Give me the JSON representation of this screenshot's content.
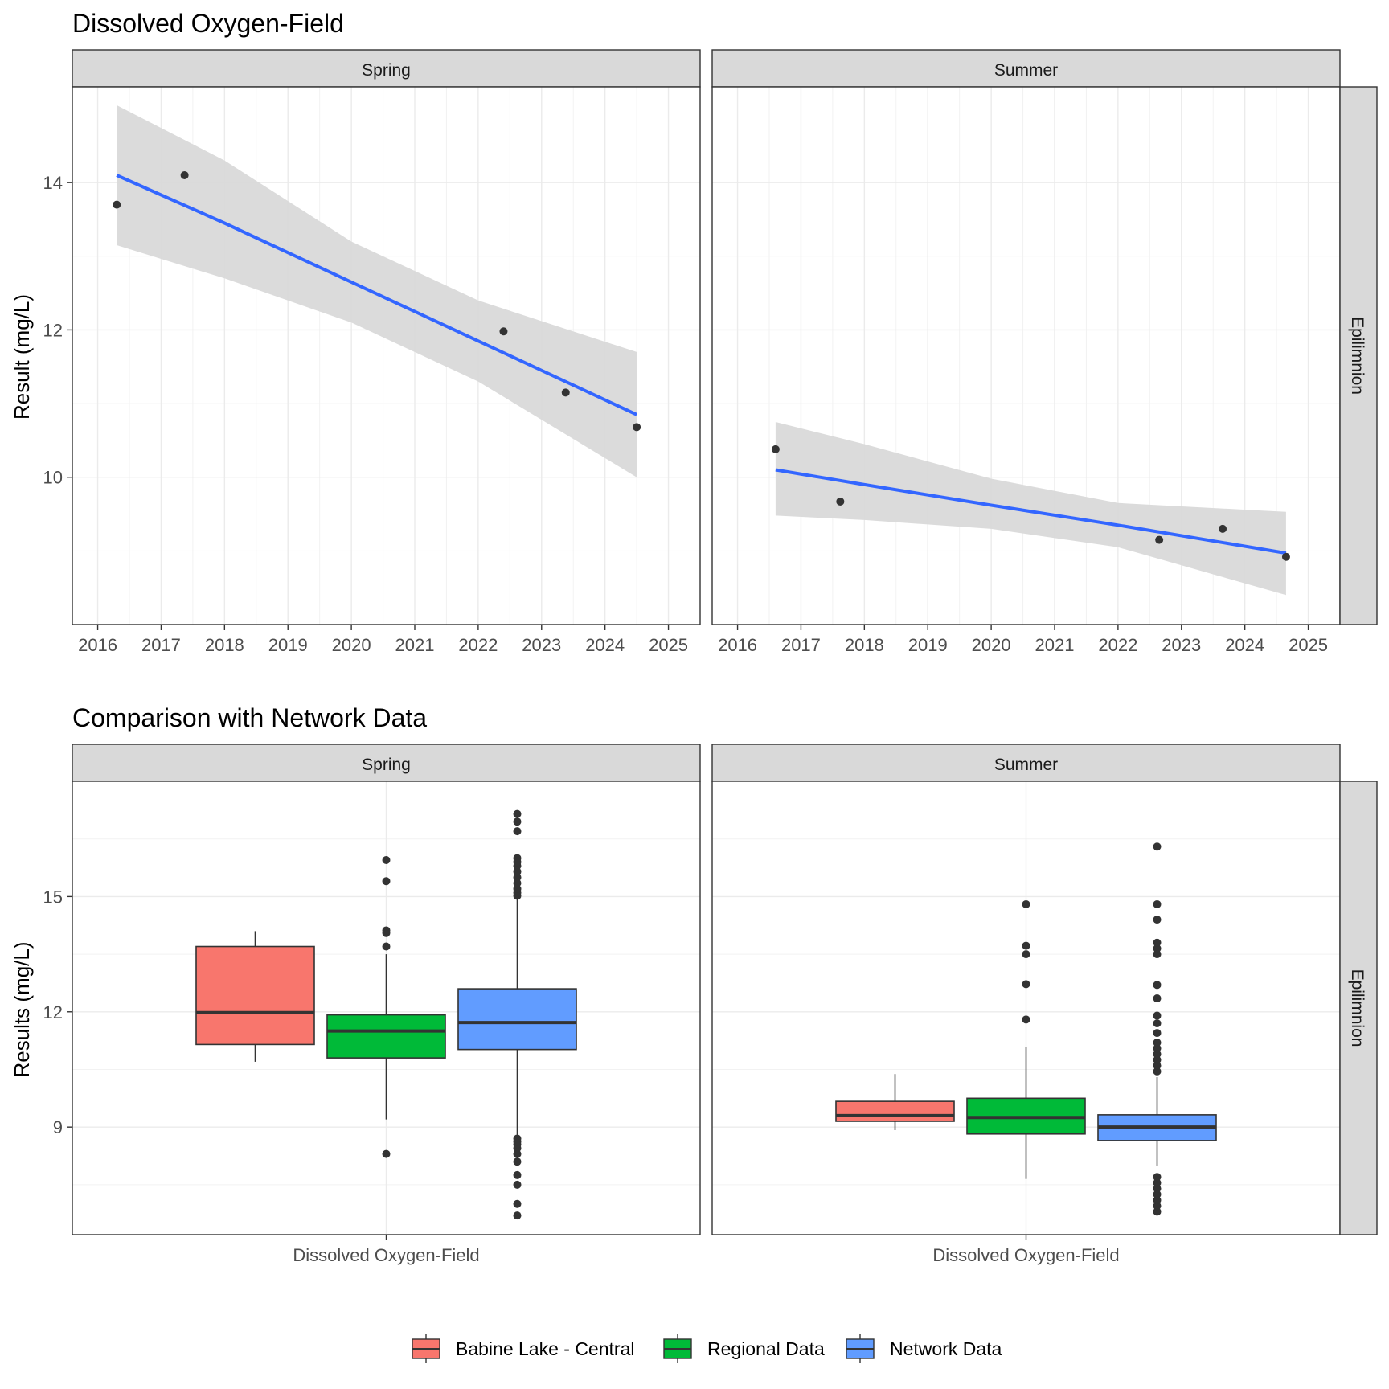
{
  "chart_data": [
    {
      "type": "scatter",
      "title": "Dissolved Oxygen-Field",
      "ylabel": "Result (mg/L)",
      "xlabel": "",
      "x_ticks": [
        "2016",
        "2017",
        "2018",
        "2019",
        "2020",
        "2021",
        "2022",
        "2023",
        "2024",
        "2025"
      ],
      "y_ticks": [
        "10",
        "12",
        "14"
      ],
      "ylim": [
        8.0,
        15.3
      ],
      "xlim": [
        2015.6,
        2025.5
      ],
      "row_label": "Epilimnion",
      "grid": true,
      "trend_line_color": "#3366ff",
      "confidence_band_color": "#d9d9d9",
      "point_color": "#333333",
      "panels": [
        {
          "label": "Spring",
          "points": [
            {
              "x": 2016.3,
              "y": 13.7
            },
            {
              "x": 2017.37,
              "y": 14.1
            },
            {
              "x": 2022.4,
              "y": 11.98
            },
            {
              "x": 2023.38,
              "y": 11.15
            },
            {
              "x": 2024.5,
              "y": 10.68
            }
          ],
          "trend": [
            {
              "x": 2016.3,
              "y": 14.1,
              "lo": 13.15,
              "hi": 15.05
            },
            {
              "x": 2018.0,
              "y": 13.45,
              "lo": 12.7,
              "hi": 14.3
            },
            {
              "x": 2020.0,
              "y": 12.65,
              "lo": 12.1,
              "hi": 13.2
            },
            {
              "x": 2022.0,
              "y": 11.85,
              "lo": 11.3,
              "hi": 12.4
            },
            {
              "x": 2024.5,
              "y": 10.85,
              "lo": 10.0,
              "hi": 11.7
            }
          ]
        },
        {
          "label": "Summer",
          "points": [
            {
              "x": 2016.6,
              "y": 10.38
            },
            {
              "x": 2017.62,
              "y": 9.67
            },
            {
              "x": 2022.65,
              "y": 9.15
            },
            {
              "x": 2023.65,
              "y": 9.3
            },
            {
              "x": 2024.65,
              "y": 8.92
            }
          ],
          "trend": [
            {
              "x": 2016.6,
              "y": 10.1,
              "lo": 9.48,
              "hi": 10.75
            },
            {
              "x": 2018.0,
              "y": 9.9,
              "lo": 9.42,
              "hi": 10.45
            },
            {
              "x": 2020.0,
              "y": 9.62,
              "lo": 9.3,
              "hi": 9.98
            },
            {
              "x": 2022.0,
              "y": 9.35,
              "lo": 9.05,
              "hi": 9.65
            },
            {
              "x": 2024.65,
              "y": 8.97,
              "lo": 8.4,
              "hi": 9.53
            }
          ]
        }
      ]
    },
    {
      "type": "box",
      "title": "Comparison with Network Data",
      "ylabel": "Results (mg/L)",
      "xlabel": "",
      "x_tick": "Dissolved Oxygen-Field",
      "y_ticks": [
        "9",
        "12",
        "15"
      ],
      "ylim": [
        6.2,
        18.0
      ],
      "row_label": "Epilimnion",
      "grid": true,
      "legend_position": "bottom",
      "series": [
        {
          "name": "Babine Lake - Central",
          "color": "#f8766d"
        },
        {
          "name": "Regional Data",
          "color": "#00ba38"
        },
        {
          "name": "Network Data",
          "color": "#619cff"
        }
      ],
      "panels": [
        {
          "label": "Spring",
          "boxes": [
            {
              "series": "Babine Lake - Central",
              "min": 10.7,
              "q1": 11.15,
              "median": 11.98,
              "q3": 13.7,
              "max": 14.1,
              "outliers": []
            },
            {
              "series": "Regional Data",
              "min": 9.2,
              "q1": 10.8,
              "median": 11.5,
              "q3": 11.92,
              "max": 13.5,
              "outliers": [
                8.3,
                13.7,
                14.05,
                14.12,
                15.4,
                15.95
              ]
            },
            {
              "series": "Network Data",
              "min": 8.8,
              "q1": 11.02,
              "median": 11.72,
              "q3": 12.6,
              "max": 14.95,
              "outliers": [
                6.7,
                7.0,
                7.5,
                7.75,
                8.1,
                8.3,
                8.45,
                8.55,
                8.62,
                8.7,
                15.02,
                15.1,
                15.2,
                15.35,
                15.5,
                15.65,
                15.8,
                15.9,
                16.0,
                16.7,
                16.95,
                17.15
              ]
            }
          ]
        },
        {
          "label": "Summer",
          "boxes": [
            {
              "series": "Babine Lake - Central",
              "min": 8.92,
              "q1": 9.15,
              "median": 9.3,
              "q3": 9.67,
              "max": 10.38,
              "outliers": []
            },
            {
              "series": "Regional Data",
              "min": 7.65,
              "q1": 8.82,
              "median": 9.25,
              "q3": 9.75,
              "max": 11.08,
              "outliers": [
                11.8,
                12.72,
                13.5,
                13.72,
                14.8
              ]
            },
            {
              "series": "Network Data",
              "min": 8.0,
              "q1": 8.65,
              "median": 9.0,
              "q3": 9.32,
              "max": 10.3,
              "outliers": [
                6.8,
                6.95,
                7.1,
                7.25,
                7.4,
                7.55,
                7.7,
                10.45,
                10.6,
                10.75,
                10.9,
                11.05,
                11.2,
                11.45,
                11.7,
                11.9,
                12.35,
                12.7,
                13.5,
                13.65,
                13.8,
                14.4,
                14.8,
                16.3
              ]
            }
          ]
        }
      ]
    }
  ]
}
